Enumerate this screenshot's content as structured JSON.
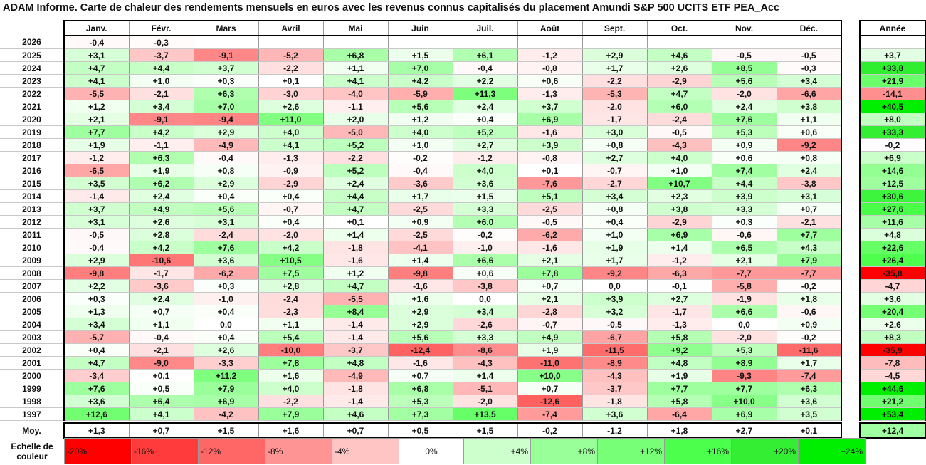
{
  "title": "ADAM Informe. Carte de chaleur des rendements mensuels en euros avec les revenus connus capitalisés du placement Amundi S&P 500 UCITS ETF PEA_Acc",
  "chart_data": {
    "type": "heatmap",
    "columns": [
      "Janv.",
      "Févr.",
      "Mars",
      "Avril",
      "Mai",
      "Juin",
      "Juil.",
      "Août",
      "Sept.",
      "Oct.",
      "Nov.",
      "Déc."
    ],
    "annual_header": "Année",
    "average_label": "Moy.",
    "rows": [
      {
        "year": "2026",
        "values": [
          "-0,4",
          "-0,3",
          "",
          "",
          "",
          "",
          "",
          "",
          "",
          "",
          "",
          ""
        ],
        "annual": ""
      },
      {
        "year": "2025",
        "values": [
          "+3,1",
          "-3,7",
          "-9,1",
          "-5,2",
          "+6,8",
          "+1,5",
          "+6,1",
          "-1,2",
          "+2,9",
          "+4,6",
          "-0,5",
          "-0,5"
        ],
        "annual": "+3,7"
      },
      {
        "year": "2024",
        "values": [
          "+4,7",
          "+4,4",
          "+3,7",
          "-2,2",
          "+1,1",
          "+7,0",
          "-0,4",
          "-0,8",
          "+1,7",
          "+2,6",
          "+8,5",
          "-0,3"
        ],
        "annual": "+33,8"
      },
      {
        "year": "2023",
        "values": [
          "+4,1",
          "+1,0",
          "+0,3",
          "+0,1",
          "+4,1",
          "+4,2",
          "+2,2",
          "+0,6",
          "-2,2",
          "-2,9",
          "+5,6",
          "+3,4"
        ],
        "annual": "+21,9"
      },
      {
        "year": "2022",
        "values": [
          "-5,5",
          "-2,1",
          "+6,3",
          "-3,0",
          "-4,0",
          "-5,9",
          "+11,3",
          "-1,3",
          "-5,3",
          "+4,7",
          "-2,0",
          "-6,6"
        ],
        "annual": "-14,1"
      },
      {
        "year": "2021",
        "values": [
          "+1,2",
          "+3,4",
          "+7,0",
          "+2,6",
          "-1,1",
          "+5,6",
          "+2,4",
          "+3,7",
          "-2,0",
          "+6,0",
          "+2,4",
          "+3,8"
        ],
        "annual": "+40,5"
      },
      {
        "year": "2020",
        "values": [
          "+2,1",
          "-9,1",
          "-9,4",
          "+11,0",
          "+2,0",
          "+1,2",
          "+0,4",
          "+6,9",
          "-1,7",
          "-2,4",
          "+7,6",
          "+1,1"
        ],
        "annual": "+8,0"
      },
      {
        "year": "2019",
        "values": [
          "+7,7",
          "+4,2",
          "+2,9",
          "+4,0",
          "-5,0",
          "+4,0",
          "+5,2",
          "-1,6",
          "+3,0",
          "-0,5",
          "+5,3",
          "+0,6"
        ],
        "annual": "+33,3"
      },
      {
        "year": "2018",
        "values": [
          "+1,9",
          "-1,1",
          "-4,9",
          "+4,1",
          "+5,2",
          "+1,0",
          "+2,7",
          "+3,9",
          "+0,8",
          "-4,3",
          "+0,9",
          "-9,2"
        ],
        "annual": "-0,2"
      },
      {
        "year": "2017",
        "values": [
          "-1,2",
          "+6,3",
          "-0,4",
          "-1,3",
          "-2,2",
          "-0,2",
          "-1,2",
          "-0,8",
          "+2,7",
          "+4,0",
          "+0,6",
          "+0,8"
        ],
        "annual": "+6,9"
      },
      {
        "year": "2016",
        "values": [
          "-6,5",
          "+1,9",
          "+0,8",
          "-0,9",
          "+5,2",
          "-0,4",
          "+4,0",
          "+0,1",
          "-0,7",
          "+1,0",
          "+7,4",
          "+2,4"
        ],
        "annual": "+14,6"
      },
      {
        "year": "2015",
        "values": [
          "+3,5",
          "+6,2",
          "+2,9",
          "-2,9",
          "+2,4",
          "-3,6",
          "+3,6",
          "-7,6",
          "-2,7",
          "+10,7",
          "+4,4",
          "-3,8"
        ],
        "annual": "+12,5"
      },
      {
        "year": "2014",
        "values": [
          "-1,4",
          "+2,4",
          "+0,4",
          "+0,4",
          "+4,4",
          "+1,7",
          "+1,5",
          "+5,1",
          "+3,4",
          "+2,3",
          "+3,9",
          "+3,1"
        ],
        "annual": "+30,6"
      },
      {
        "year": "2013",
        "values": [
          "+3,7",
          "+4,9",
          "+5,6",
          "-0,7",
          "+4,7",
          "-2,5",
          "+3,3",
          "-2,5",
          "+0,8",
          "+3,8",
          "+3,3",
          "+0,7"
        ],
        "annual": "+27,6"
      },
      {
        "year": "2012",
        "values": [
          "+3,1",
          "+2,6",
          "+3,1",
          "+0,4",
          "+0,1",
          "+0,9",
          "+6,0",
          "-0,5",
          "+0,4",
          "-2,9",
          "+0,3",
          "-2,1"
        ],
        "annual": "+11,6"
      },
      {
        "year": "2011",
        "values": [
          "-0,5",
          "+2,8",
          "-2,4",
          "-2,0",
          "+1,4",
          "-2,5",
          "-0,2",
          "-6,2",
          "+1,0",
          "+6,9",
          "-0,6",
          "+7,7"
        ],
        "annual": "+4,8"
      },
      {
        "year": "2010",
        "values": [
          "-0,4",
          "+4,2",
          "+7,6",
          "+4,2",
          "-1,8",
          "-4,1",
          "-1,0",
          "-1,6",
          "+1,9",
          "+1,4",
          "+6,5",
          "+4,3"
        ],
        "annual": "+22,6"
      },
      {
        "year": "2009",
        "values": [
          "+2,9",
          "-10,6",
          "+3,6",
          "+10,5",
          "-1,6",
          "+1,4",
          "+6,6",
          "+2,1",
          "+1,7",
          "-1,2",
          "+2,1",
          "+7,9"
        ],
        "annual": "+26,4"
      },
      {
        "year": "2008",
        "values": [
          "-9,8",
          "-1,7",
          "-6,2",
          "+7,5",
          "+1,2",
          "-9,8",
          "+0,6",
          "+7,8",
          "-9,2",
          "-6,3",
          "-7,7",
          "-7,7"
        ],
        "annual": "-35,8"
      },
      {
        "year": "2007",
        "values": [
          "+2,2",
          "-3,6",
          "+0,3",
          "+2,8",
          "+4,7",
          "-1,6",
          "-3,8",
          "+0,7",
          "0,0",
          "-0,1",
          "-5,8",
          "-0,2"
        ],
        "annual": "-4,7"
      },
      {
        "year": "2006",
        "values": [
          "+0,3",
          "+2,4",
          "-1,0",
          "-2,4",
          "-5,5",
          "+1,6",
          "0,0",
          "+2,1",
          "+3,9",
          "+2,7",
          "-1,9",
          "+1,8"
        ],
        "annual": "+3,6"
      },
      {
        "year": "2005",
        "values": [
          "+1,3",
          "+0,7",
          "+0,4",
          "-2,3",
          "+8,4",
          "+2,9",
          "+3,4",
          "-2,8",
          "+3,2",
          "-1,7",
          "+6,6",
          "-0,6"
        ],
        "annual": "+20,4"
      },
      {
        "year": "2004",
        "values": [
          "+3,4",
          "+1,1",
          "0,0",
          "+1,1",
          "-1,4",
          "+2,9",
          "-2,6",
          "-0,7",
          "-0,5",
          "-1,3",
          "0,0",
          "+0,9"
        ],
        "annual": "+2,6"
      },
      {
        "year": "2003",
        "values": [
          "-5,7",
          "-0,4",
          "+0,4",
          "+5,4",
          "-1,4",
          "+5,6",
          "+3,3",
          "+4,9",
          "-6,7",
          "+5,8",
          "-2,0",
          "-0,2"
        ],
        "annual": "+8,3"
      },
      {
        "year": "2002",
        "values": [
          "+0,4",
          "-2,1",
          "+2,6",
          "-10,0",
          "-3,7",
          "-12,4",
          "-8,6",
          "+1,9",
          "-11,5",
          "+9,2",
          "+5,3",
          "-11,6"
        ],
        "annual": "-35,9"
      },
      {
        "year": "2001",
        "values": [
          "+4,7",
          "-9,0",
          "-3,3",
          "+7,8",
          "+4,8",
          "-1,6",
          "-4,3",
          "-11,0",
          "-8,9",
          "+4,8",
          "+8,9",
          "+1,7"
        ],
        "annual": "-7,8"
      },
      {
        "year": "2000",
        "values": [
          "-3,4",
          "+0,1",
          "+11,2",
          "+1,6",
          "-4,9",
          "+0,7",
          "+1,4",
          "+10,0",
          "-4,3",
          "+1,9",
          "-9,3",
          "-7,4"
        ],
        "annual": "-4,5"
      },
      {
        "year": "1999",
        "values": [
          "+7,6",
          "+0,5",
          "+7,9",
          "+4,0",
          "-1,8",
          "+6,8",
          "-5,1",
          "+0,7",
          "-3,7",
          "+7,7",
          "+7,7",
          "+6,3"
        ],
        "annual": "+44,6"
      },
      {
        "year": "1998",
        "values": [
          "+3,6",
          "+6,4",
          "+6,9",
          "-2,2",
          "-1,4",
          "+5,3",
          "-2,0",
          "-12,6",
          "-1,8",
          "+5,8",
          "+10,0",
          "+3,6"
        ],
        "annual": "+21,2"
      },
      {
        "year": "1997",
        "values": [
          "+12,6",
          "+4,1",
          "-4,2",
          "+7,9",
          "+4,6",
          "+7,3",
          "+13,5",
          "-7,4",
          "+3,6",
          "-6,4",
          "+6,9",
          "+3,5"
        ],
        "annual": "+53,4"
      }
    ],
    "average": {
      "values": [
        "+1,3",
        "+0,7",
        "+1,5",
        "+1,6",
        "+0,7",
        "+0,5",
        "+1,5",
        "-0,2",
        "-1,2",
        "+1,8",
        "+2,7",
        "+0,1"
      ],
      "annual": "+12,4"
    },
    "color_scale": {
      "label_line1": "Echelle de",
      "label_line2": "couleur",
      "stops": [
        {
          "label": "-20%",
          "value": -20,
          "color": "#ff0000"
        },
        {
          "label": "-16%",
          "value": -16,
          "color": "#ff3b3b"
        },
        {
          "label": "-12%",
          "value": -12,
          "color": "#ff6666"
        },
        {
          "label": "-8%",
          "value": -8,
          "color": "#ff9494"
        },
        {
          "label": "-4%",
          "value": -4,
          "color": "#ffc4c4"
        },
        {
          "label": "0%",
          "value": 0,
          "color": "#ffffff"
        },
        {
          "label": "+4%",
          "value": 4,
          "color": "#ccffcc"
        },
        {
          "label": "+8%",
          "value": 8,
          "color": "#99ff99"
        },
        {
          "label": "+12%",
          "value": 12,
          "color": "#77ff77"
        },
        {
          "label": "+16%",
          "value": 16,
          "color": "#4cff4c"
        },
        {
          "label": "+20%",
          "value": 20,
          "color": "#33ee33"
        },
        {
          "label": "+24%",
          "value": 24,
          "color": "#00ee00"
        }
      ]
    }
  }
}
